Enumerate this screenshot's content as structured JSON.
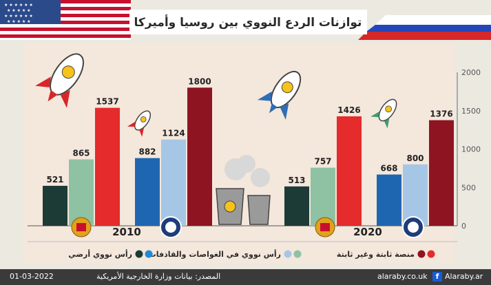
{
  "title": "توازنات الردع النووي بين روسيا وأميركا",
  "chart_data": {
    "type": "bar",
    "ylim": [
      0,
      2000
    ],
    "yticks": [
      "0",
      "500",
      "1000",
      "1500",
      "2000"
    ],
    "groups": [
      {
        "label": "2010",
        "countries": [
          {
            "country": "russia",
            "values": [
              521,
              865,
              1537
            ],
            "labels": [
              "521",
              "865",
              "1537"
            ]
          },
          {
            "country": "usa",
            "values": [
              882,
              1124,
              1800
            ],
            "labels": [
              "882",
              "1124",
              "1800"
            ]
          }
        ]
      },
      {
        "label": "2020",
        "countries": [
          {
            "country": "russia",
            "values": [
              513,
              757,
              1426
            ],
            "labels": [
              "513",
              "757",
              "1426"
            ]
          },
          {
            "country": "usa",
            "values": [
              668,
              800,
              1376
            ],
            "labels": [
              "668",
              "800",
              "1376"
            ]
          }
        ]
      }
    ],
    "legend": [
      {
        "name": "منصة ثابتة وغير ثابتة",
        "colors": [
          "#e52b2b",
          "#8f1422"
        ]
      },
      {
        "name": "رأس نووي في الغواصات والقاذفات",
        "colors": [
          "#8fc2a3",
          "#a6c6e6"
        ]
      },
      {
        "name": "رأس نووي أرضي",
        "colors": [
          "#1f8bd6",
          "#1d3b36"
        ]
      }
    ],
    "colors": {
      "russia": [
        "#1d3b36",
        "#8fc2a3",
        "#e52b2b"
      ],
      "usa": [
        "#1f66b0",
        "#a6c6e6",
        "#8f1422"
      ]
    }
  },
  "footer": {
    "date": "01-03-2022",
    "source": "المصدر: بيانات وزارة الخارجية الأمريكية",
    "website": "alaraby.co.uk",
    "facebook": "Alaraby.ar"
  }
}
